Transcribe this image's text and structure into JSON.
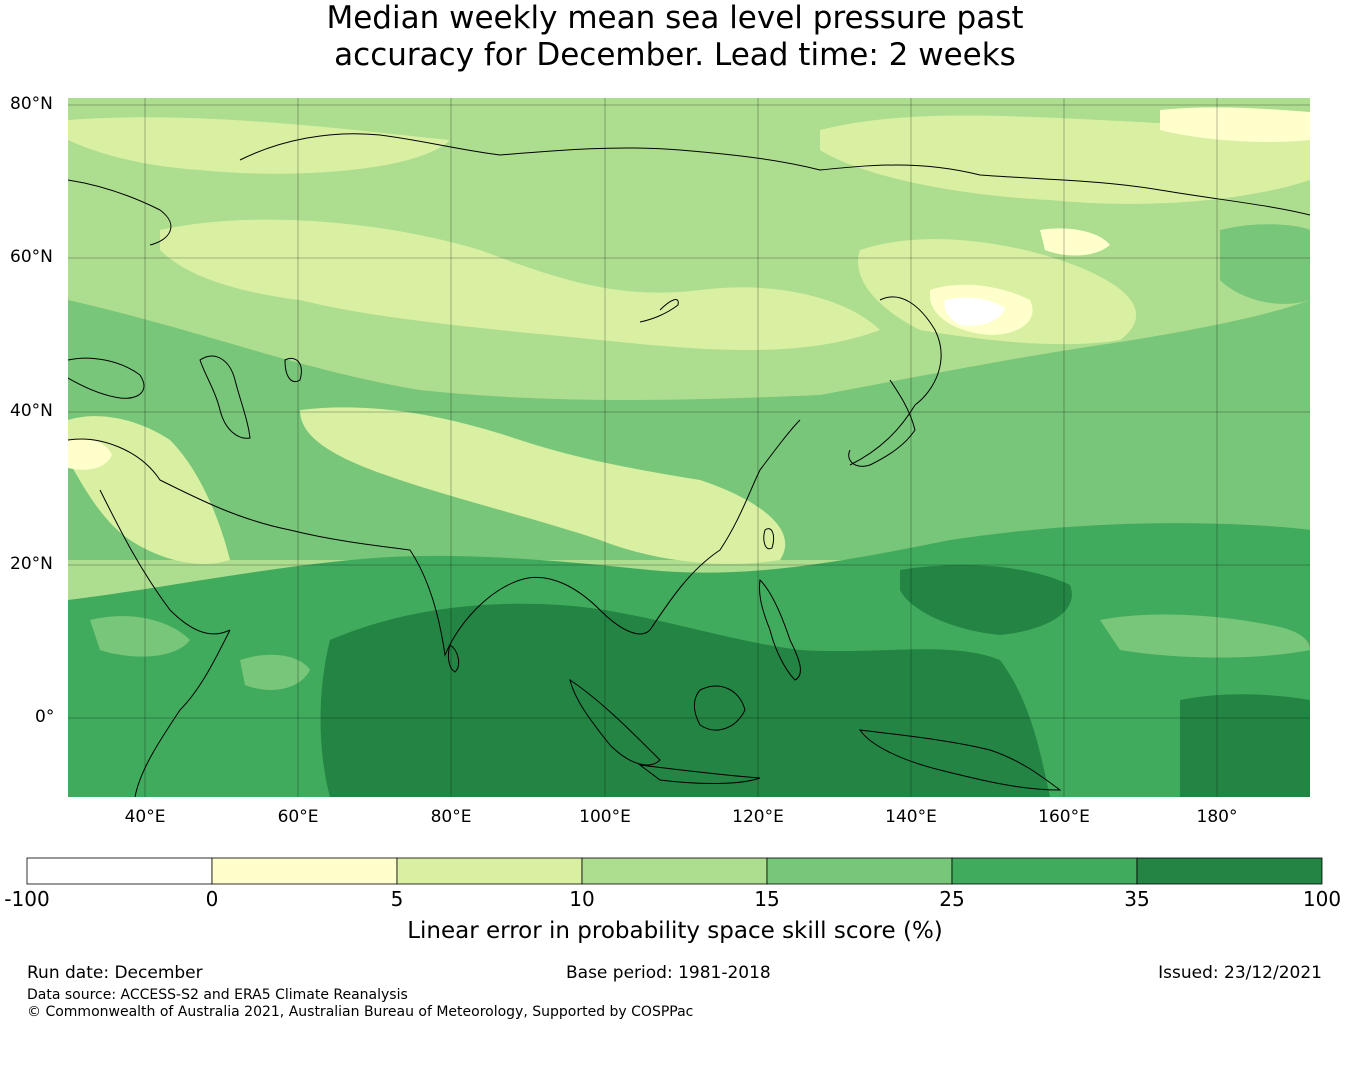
{
  "title_line1": "Median weekly mean sea level pressure past",
  "title_line2": "accuracy for December. Lead time: 2 weeks",
  "lat_labels": [
    "80°N",
    "60°N",
    "40°N",
    "20°N",
    "0°"
  ],
  "lon_labels": [
    "40°E",
    "60°E",
    "80°E",
    "100°E",
    "120°E",
    "140°E",
    "160°E",
    "180°"
  ],
  "colorbar": {
    "ticks": [
      "-100",
      "0",
      "5",
      "10",
      "15",
      "25",
      "35",
      "100"
    ],
    "colors": [
      "#ffffff",
      "#ffffcc",
      "#d9f0a3",
      "#addd8e",
      "#78c679",
      "#41ab5d",
      "#238443"
    ],
    "label": "Linear error in probability space skill score (%)"
  },
  "footer": {
    "run_date": "Run date: December",
    "base_period": "Base period: 1981-2018",
    "issued": "Issued: 23/12/2021",
    "data_source": "Data source: ACCESS-S2 and ERA5 Climate Reanalysis",
    "copyright": "© Commonwealth of Australia 2021, Australian Bureau of Meteorology, Supported by COSPPac"
  }
}
